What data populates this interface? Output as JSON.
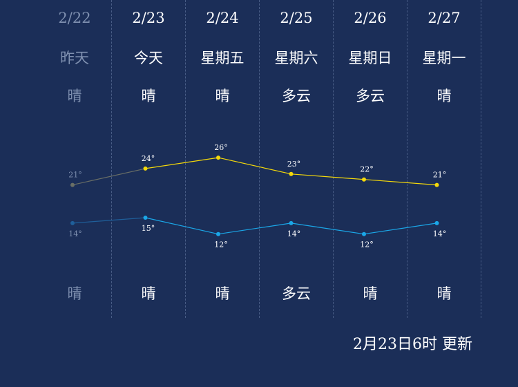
{
  "days": [
    {
      "date": "2/22",
      "day": "昨天",
      "weather_day": "晴",
      "weather_night": "晴",
      "past": true
    },
    {
      "date": "2/23",
      "day": "今天",
      "weather_day": "晴",
      "weather_night": "晴",
      "past": false
    },
    {
      "date": "2/24",
      "day": "星期五",
      "weather_day": "晴",
      "weather_night": "晴",
      "past": false
    },
    {
      "date": "2/25",
      "day": "星期六",
      "weather_day": "多云",
      "weather_night": "多云",
      "past": false
    },
    {
      "date": "2/26",
      "day": "星期日",
      "weather_day": "多云",
      "weather_night": "晴",
      "past": false
    },
    {
      "date": "2/27",
      "day": "星期一",
      "weather_day": "晴",
      "weather_night": "晴",
      "past": false
    }
  ],
  "update_text": "2月23日6时 更新",
  "colors": {
    "background": "#1b2e58",
    "high_line": "#f5d90a",
    "low_line": "#1ba7e8",
    "past_high": "#6a6f66",
    "past_low": "#1f5f9a",
    "past_text": "#7f90b0",
    "label": "#ffffff"
  },
  "chart_data": {
    "type": "line",
    "categories": [
      "2/22",
      "2/23",
      "2/24",
      "2/25",
      "2/26",
      "2/27"
    ],
    "series": [
      {
        "values": [
          21,
          24,
          26,
          23,
          22,
          21
        ],
        "point_labels": [
          "21°",
          "24°",
          "26°",
          "23°",
          "22°",
          "21°"
        ]
      },
      {
        "values": [
          14,
          15,
          12,
          14,
          12,
          14
        ],
        "point_labels": [
          "14°",
          "15°",
          "12°",
          "14°",
          "12°",
          "14°"
        ]
      }
    ]
  }
}
